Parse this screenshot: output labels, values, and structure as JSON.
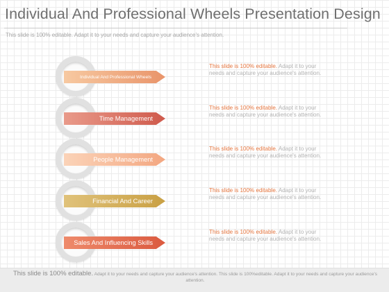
{
  "slide": {
    "title": "Individual And Professional Wheels Presentation Design",
    "subtitle": "This slide is 100% editable. Adapt it to your needs and capture your audience's attention."
  },
  "rows": [
    {
      "label": "Individual And Professional Wheels",
      "color_start": "#f7c9a1",
      "color_end": "#e9946a",
      "desc_highlight": "This slide is 100% editable.",
      "desc_rest": "Adapt it to your needs and capture your audience's attention."
    },
    {
      "label": "Time Management",
      "color_start": "#e99a8a",
      "color_end": "#cf5a4c",
      "desc_highlight": "This slide is 100% editable.",
      "desc_rest": "Adapt it to your needs and capture your audience's attention."
    },
    {
      "label": "People Management",
      "color_start": "#fbd3b8",
      "color_end": "#f3a781",
      "desc_highlight": "This slide is 100% editable.",
      "desc_rest": "Adapt it to your needs and capture your audience's attention."
    },
    {
      "label": "Financial And Career",
      "color_start": "#e0c27a",
      "color_end": "#c9a044",
      "desc_highlight": "This slide is 100% editable.",
      "desc_rest": "Adapt it to your needs and capture your audience's attention."
    },
    {
      "label": "Sales And Influencing  Skills",
      "color_start": "#ee8a6b",
      "color_end": "#db5a3f",
      "desc_highlight": "This slide is 100% editable.",
      "desc_rest": "Adapt it to your needs and capture your audience's attention."
    }
  ],
  "footer": {
    "lead": "This slide is 100% editable.",
    "rest": "Adapt it to your needs and capture your audience's attention. This slide is 100%editable. Adapt it to your needs and capture your audience's attention."
  }
}
